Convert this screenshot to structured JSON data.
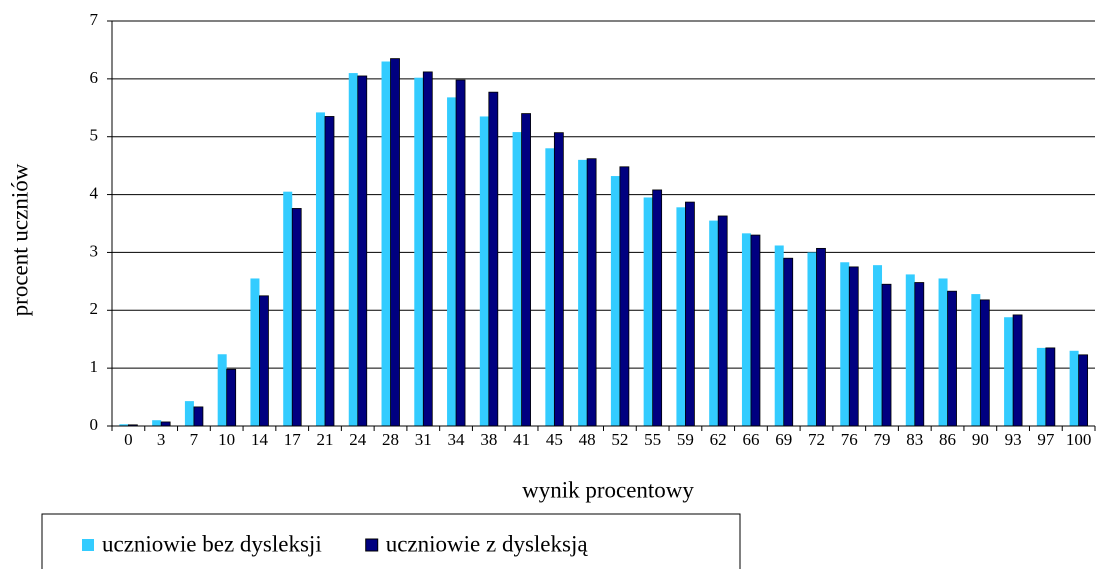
{
  "chart_data": {
    "type": "bar",
    "xlabel": "wynik procentowy",
    "ylabel": "procent uczniów",
    "categories": [
      "0",
      "3",
      "7",
      "10",
      "14",
      "17",
      "21",
      "24",
      "28",
      "31",
      "34",
      "38",
      "41",
      "45",
      "48",
      "52",
      "55",
      "59",
      "62",
      "66",
      "69",
      "72",
      "76",
      "79",
      "83",
      "86",
      "90",
      "93",
      "97",
      "100"
    ],
    "series": [
      {
        "name": "uczniowie bez dysleksji",
        "color": "#33ccff",
        "values": [
          0.03,
          0.1,
          0.43,
          1.24,
          2.55,
          4.05,
          5.42,
          6.1,
          6.3,
          6.02,
          5.68,
          5.35,
          5.08,
          4.8,
          4.6,
          4.32,
          3.95,
          3.78,
          3.55,
          3.33,
          3.12,
          3.0,
          2.83,
          2.78,
          2.62,
          2.55,
          2.28,
          1.88,
          1.35,
          1.3
        ]
      },
      {
        "name": "uczniowie z dysleksją",
        "color": "#000080",
        "values": [
          0.02,
          0.07,
          0.33,
          0.98,
          2.25,
          3.76,
          5.35,
          6.05,
          6.35,
          6.12,
          5.98,
          5.77,
          5.4,
          5.07,
          4.62,
          4.48,
          4.08,
          3.87,
          3.63,
          3.3,
          2.9,
          3.07,
          2.75,
          2.45,
          2.48,
          2.33,
          2.18,
          1.92,
          1.35,
          1.23
        ]
      }
    ],
    "ylim": [
      0,
      7
    ],
    "yticks": [
      0,
      1,
      2,
      3,
      4,
      5,
      6,
      7
    ],
    "grid": true,
    "legend": "bottom"
  }
}
